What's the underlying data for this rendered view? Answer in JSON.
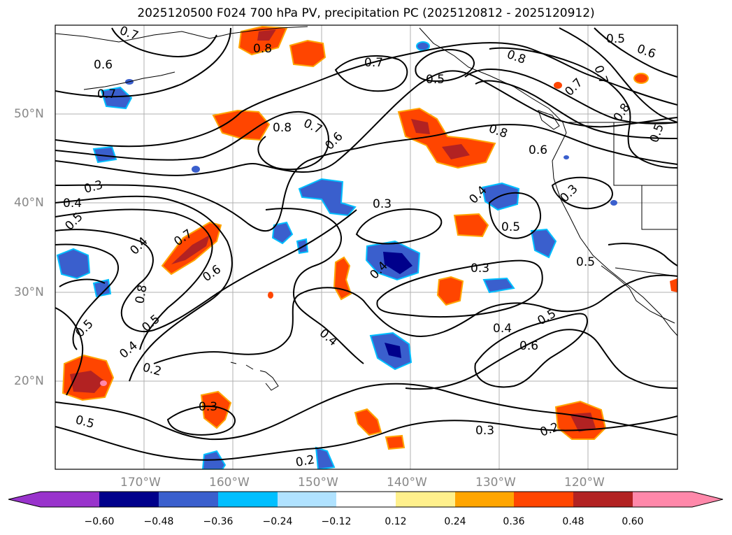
{
  "title": "2025120500 F024 700 hPa PV, precipitation PC (2025120812 - 2025120912)",
  "latitude_labels": [
    "50°N",
    "40°N",
    "30°N",
    "20°N"
  ],
  "longitude_labels": [
    "170°W",
    "160°W",
    "150°W",
    "140°W",
    "130°W",
    "120°W"
  ],
  "colorbar": {
    "ticks": [
      "−0.60",
      "−0.48",
      "−0.36",
      "−0.24",
      "−0.12",
      "0.12",
      "0.24",
      "0.36",
      "0.48",
      "0.60"
    ],
    "colors": [
      "#9933cc",
      "#00008b",
      "#3a5fcd",
      "#00bfff",
      "#b0e2ff",
      "#ffffff",
      "#fff08c",
      "#ffa500",
      "#ff4500",
      "#b22222",
      "#ff88aa",
      "#ff88aa"
    ]
  },
  "contour_labels": {
    "c1": "0.7",
    "c2": "0.6",
    "c3": "0.7",
    "c4": "0.8",
    "c5": "0.8",
    "c6": "0.7",
    "c7": "0.6",
    "c8": "0.7",
    "c9": "0.5",
    "c10": "0.8",
    "c11": "0.7",
    "c12": "0.5",
    "c13": "0.6",
    "c14": "0.8",
    "c15": "0.6",
    "c16": "0.8",
    "c17": "0.7",
    "c18": "0.5",
    "c19": "0.3",
    "c20": "0.4",
    "c21": "0.5",
    "c22": "0.3",
    "c23": "0.4",
    "c24": "0.3",
    "c25": "0.5",
    "c26": "0.4",
    "c27": "0.7",
    "c28": "0.6",
    "c29": "0.8",
    "c30": "0.4",
    "c31": "0.5",
    "c32": "0.3",
    "c33": "0.5",
    "c34": "0.4",
    "c35": "0.5",
    "c36": "0.4",
    "c37": "0.6",
    "c38": "0.5",
    "c39": "0.4",
    "c40": "0.2",
    "c41": "0.3",
    "c42": "0.5",
    "c43": "0.3",
    "c44": "0.2",
    "c45": "0.2"
  }
}
